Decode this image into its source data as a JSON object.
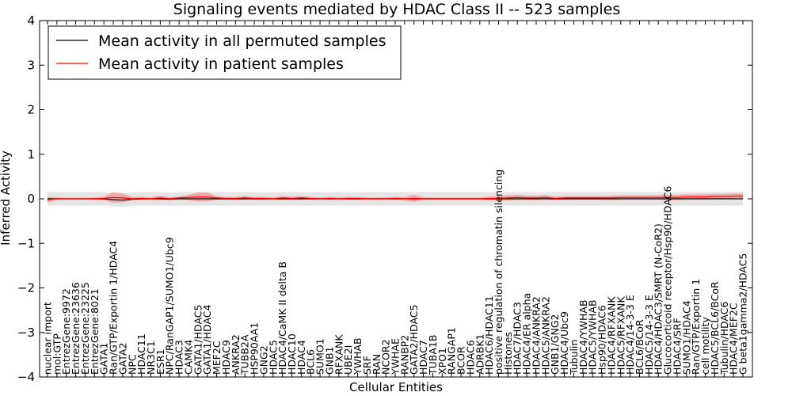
{
  "chart_data": {
    "type": "line",
    "title": "Signaling events mediated by HDAC Class II -- 523 samples",
    "xlabel": "Cellular Entities",
    "ylabel": "Inferred Activity",
    "ylim": [
      -4,
      4
    ],
    "yticks": [
      "4",
      "3",
      "2",
      "1",
      "0",
      "−1",
      "−2",
      "−3",
      "−4"
    ],
    "legend_position": "top-left",
    "categories": [
      "nuclear import",
      "mol:GTP",
      "EntrezGene:9972",
      "EntrezGene:23636",
      "EntrezGene:23225",
      "EntrezGene:8021",
      "GATA1",
      "Ran/GTP/Exportin 1/HDAC4",
      "GATA2",
      "NPC",
      "HDAC11",
      "NR3C1",
      "ESR1",
      "NPC/RanGAP1/SUMO1/Ubc9",
      "HDAC3",
      "CAMK4",
      "GATA1/HDAC5",
      "GATA1/HDAC4",
      "MEF2C",
      "HDAC9",
      "ANKRA2",
      "TUBB2A",
      "HSP90AA1",
      "GNG2",
      "HDAC5",
      "HDAC4/CaMK II delta B",
      "HDAC10",
      "HDAC4",
      "BCL6",
      "SUMO1",
      "GNB1",
      "RFXANK",
      "UBE2I",
      "YWHAB",
      "SRF",
      "RAN",
      "NCOR2",
      "YWHAE",
      "RANBP2",
      "GATA2/HDAC5",
      "HDAC7",
      "TUBA1B",
      "XPO1",
      "RANGAP1",
      "BCOR",
      "HDAC6",
      "ADRBK1",
      "HDAC6/HDAC11",
      "positive regulation of chromatin silencing",
      "Histones",
      "HDAC7/HDAC3",
      "HDAC4/ER alpha",
      "HDAC4/ANKRA2",
      "HDAC5/ANKRA2",
      "GNB1/GNG2",
      "HDAC4/Ubc9",
      "Tubulin",
      "HDAC4/YWHAB",
      "HDAC5/YWHAB",
      "Hsp90/HDAC6",
      "HDAC4/RFXANK",
      "HDAC5/RFXANK",
      "HDAC4/14-3-3 E",
      "BCL6/BCoR",
      "HDAC5/14-3-3 E",
      "HDAC4/HDAC3/SMRT (N-CoR2)",
      "Glucocorticoid receptor/Hsp90/HDAC6",
      "HDAC4/SRF",
      "SUMO1/HDAC4",
      "Ran/GTP/Exportin 1",
      "cell motility",
      "HDAC5/BCL6/BCoR",
      "Tubulin/HDAC6",
      "HDAC4/MEF2C",
      "G beta1gamma2/HDAC5"
    ],
    "series": [
      {
        "name": "Mean activity in all permuted samples",
        "color": "#000000",
        "values": [
          0.0,
          0.0,
          0.0,
          0.0,
          0.0,
          0.0,
          0.0,
          -0.02,
          -0.03,
          -0.01,
          0.0,
          0.0,
          0.0,
          -0.01,
          0.0,
          0.0,
          0.0,
          0.0,
          0.0,
          0.0,
          0.0,
          0.0,
          0.0,
          0.0,
          0.0,
          0.0,
          0.0,
          0.0,
          0.0,
          0.0,
          0.0,
          0.0,
          0.0,
          0.0,
          0.0,
          0.0,
          0.0,
          0.0,
          0.0,
          0.0,
          0.0,
          0.0,
          0.0,
          0.0,
          0.0,
          0.0,
          0.0,
          0.0,
          0.0,
          0.0,
          0.0,
          0.0,
          0.0,
          0.0,
          0.0,
          0.0,
          0.0,
          0.0,
          0.0,
          0.0,
          0.0,
          0.0,
          0.0,
          0.0,
          0.0,
          0.0,
          0.0,
          0.0,
          0.0,
          0.0,
          0.0,
          0.0,
          0.0,
          0.0,
          0.0
        ],
        "band": 0.15
      },
      {
        "name": "Mean activity in patient samples",
        "color": "#ff0000",
        "values": [
          -0.02,
          0.0,
          0.0,
          0.0,
          0.0,
          0.0,
          0.01,
          0.03,
          0.02,
          0.0,
          0.01,
          0.0,
          0.02,
          0.0,
          0.02,
          0.03,
          0.04,
          0.04,
          0.02,
          0.01,
          0.01,
          0.02,
          0.01,
          0.01,
          0.0,
          0.02,
          0.01,
          0.02,
          0.01,
          0.0,
          0.01,
          0.0,
          0.01,
          0.01,
          0.0,
          0.0,
          0.0,
          0.01,
          0.0,
          0.01,
          0.0,
          0.0,
          0.0,
          0.0,
          0.0,
          0.0,
          0.0,
          0.01,
          0.01,
          0.02,
          0.03,
          0.02,
          0.02,
          0.03,
          0.01,
          0.02,
          0.02,
          0.02,
          0.02,
          0.02,
          0.02,
          0.03,
          0.03,
          0.03,
          0.03,
          0.03,
          0.03,
          0.03,
          0.04,
          0.04,
          0.04,
          0.05,
          0.05,
          0.06,
          0.06
        ],
        "band": [
          0.06,
          0.03,
          0.02,
          0.02,
          0.02,
          0.03,
          0.04,
          0.12,
          0.1,
          0.04,
          0.03,
          0.03,
          0.05,
          0.03,
          0.03,
          0.06,
          0.1,
          0.1,
          0.04,
          0.03,
          0.03,
          0.04,
          0.03,
          0.03,
          0.03,
          0.04,
          0.04,
          0.04,
          0.03,
          0.03,
          0.03,
          0.03,
          0.03,
          0.03,
          0.03,
          0.03,
          0.03,
          0.03,
          0.04,
          0.08,
          0.03,
          0.03,
          0.03,
          0.03,
          0.03,
          0.03,
          0.03,
          0.04,
          0.05,
          0.06,
          0.06,
          0.05,
          0.05,
          0.05,
          0.04,
          0.04,
          0.04,
          0.04,
          0.04,
          0.04,
          0.05,
          0.05,
          0.05,
          0.05,
          0.05,
          0.05,
          0.06,
          0.06,
          0.06,
          0.06,
          0.06,
          0.06,
          0.06,
          0.06,
          0.06
        ]
      }
    ]
  }
}
